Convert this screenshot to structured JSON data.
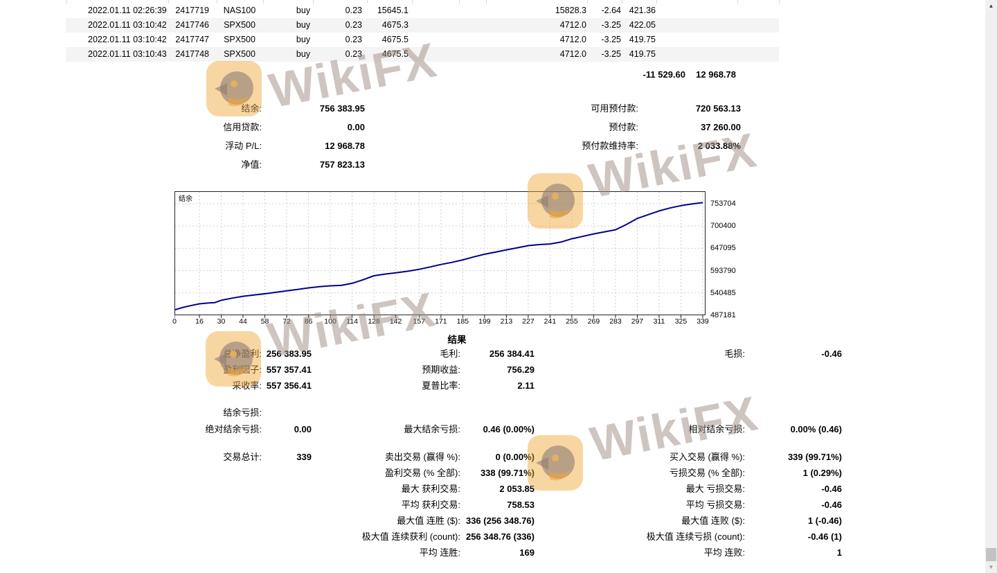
{
  "positions_table": {
    "rows": [
      {
        "time": "2022.01.11 02:26:39",
        "ticket": "2417719",
        "symbol": "NAS100",
        "type": "buy",
        "volume": "0.23",
        "price": "15645.1",
        "current_price": "15828.3",
        "swap": "-2.64",
        "profit": "421.36"
      },
      {
        "time": "2022.01.11 03:10:42",
        "ticket": "2417746",
        "symbol": "SPX500",
        "type": "buy",
        "volume": "0.23",
        "price": "4675.3",
        "current_price": "4712.0",
        "swap": "-3.25",
        "profit": "422.05"
      },
      {
        "time": "2022.01.11 03:10:42",
        "ticket": "2417747",
        "symbol": "SPX500",
        "type": "buy",
        "volume": "0.23",
        "price": "4675.5",
        "current_price": "4712.0",
        "swap": "-3.25",
        "profit": "419.75"
      },
      {
        "time": "2022.01.11 03:10:43",
        "ticket": "2417748",
        "symbol": "SPX500",
        "type": "buy",
        "volume": "0.23",
        "price": "4675.5",
        "current_price": "4712.0",
        "swap": "-3.25",
        "profit": "419.75"
      }
    ],
    "totals": {
      "swap_total": "-11 529.60",
      "profit_total": "12 968.78"
    }
  },
  "account_summary": {
    "left": [
      {
        "label": "结余:",
        "value": "756 383.95"
      },
      {
        "label": "信用贷款:",
        "value": "0.00"
      },
      {
        "label": "浮动 P/L:",
        "value": "12 968.78"
      },
      {
        "label": "净值:",
        "value": "757 823.13"
      }
    ],
    "right": [
      {
        "label": "可用预付款:",
        "value": "720 563.13"
      },
      {
        "label": "预付款:",
        "value": "37 260.00"
      },
      {
        "label": "预付款维持率:",
        "value": "2 033.88%"
      }
    ]
  },
  "chart_data": {
    "type": "line",
    "title": "",
    "legend": [
      "结余"
    ],
    "legend_position": "top-left-inside",
    "grid": true,
    "line_color": "#00008b",
    "xlabel": "",
    "ylabel": "",
    "x_ticks": [
      0,
      16,
      30,
      44,
      58,
      72,
      86,
      100,
      114,
      128,
      142,
      157,
      171,
      185,
      199,
      213,
      227,
      241,
      255,
      269,
      283,
      297,
      311,
      325,
      339
    ],
    "y_ticks": [
      753704,
      700400,
      647095,
      593790,
      540485,
      487181
    ],
    "xlim": [
      0,
      340.5
    ],
    "ylim": [
      487181,
      783500
    ],
    "series": [
      {
        "name": "结余",
        "points": [
          [
            0,
            500000
          ],
          [
            5,
            505500
          ],
          [
            10,
            509800
          ],
          [
            16,
            514500
          ],
          [
            22,
            516500
          ],
          [
            26,
            517500
          ],
          [
            30,
            523000
          ],
          [
            37,
            528000
          ],
          [
            44,
            532500
          ],
          [
            51,
            535500
          ],
          [
            58,
            538500
          ],
          [
            65,
            542000
          ],
          [
            72,
            545500
          ],
          [
            79,
            549000
          ],
          [
            86,
            552500
          ],
          [
            93,
            555500
          ],
          [
            100,
            557500
          ],
          [
            107,
            558500
          ],
          [
            114,
            563500
          ],
          [
            121,
            572000
          ],
          [
            128,
            581500
          ],
          [
            135,
            585500
          ],
          [
            142,
            588500
          ],
          [
            150,
            592500
          ],
          [
            157,
            597000
          ],
          [
            164,
            602500
          ],
          [
            171,
            608500
          ],
          [
            178,
            613500
          ],
          [
            185,
            619500
          ],
          [
            192,
            626500
          ],
          [
            199,
            633000
          ],
          [
            206,
            638000
          ],
          [
            213,
            643500
          ],
          [
            220,
            648500
          ],
          [
            227,
            653500
          ],
          [
            234,
            656000
          ],
          [
            241,
            657500
          ],
          [
            248,
            662000
          ],
          [
            255,
            670000
          ],
          [
            262,
            675500
          ],
          [
            269,
            681500
          ],
          [
            276,
            686500
          ],
          [
            283,
            691500
          ],
          [
            290,
            704000
          ],
          [
            297,
            718500
          ],
          [
            304,
            727500
          ],
          [
            311,
            736500
          ],
          [
            318,
            743500
          ],
          [
            325,
            749000
          ],
          [
            332,
            753000
          ],
          [
            339,
            756384
          ]
        ]
      }
    ]
  },
  "results": {
    "title": "结果",
    "rows": [
      {
        "left": {
          "label": "总净盈利:",
          "value": "256 383.95"
        },
        "mid": {
          "label": "毛利:",
          "value": "256 384.41"
        },
        "right": {
          "label": "毛损:",
          "value": "-0.46"
        }
      },
      {
        "left": {
          "label": "盈利因子:",
          "value": "557 357.41"
        },
        "mid": {
          "label": "预期收益:",
          "value": "756.29"
        }
      },
      {
        "left": {
          "label": "采收率:",
          "value": "557 356.41"
        },
        "mid": {
          "label": "夏普比率:",
          "value": "2.11"
        }
      },
      {
        "left": {
          "label": "结余亏损:",
          "value": ""
        }
      },
      {
        "left": {
          "label": "绝对结余亏损:",
          "value": "0.00"
        },
        "mid": {
          "label": "最大结余亏损:",
          "value": "0.46 (0.00%)"
        },
        "right": {
          "label": "相对结余亏损:",
          "value": "0.00% (0.46)"
        }
      },
      {
        "left": {
          "label": "交易总计:",
          "value": "339"
        },
        "mid": {
          "label": "卖出交易 (赢得 %):",
          "value": "0 (0.00%)"
        },
        "right": {
          "label": "买入交易 (赢得 %):",
          "value": "339 (99.71%)"
        }
      },
      {
        "mid": {
          "label": "盈利交易 (% 全部):",
          "value": "338 (99.71%)"
        },
        "right": {
          "label": "亏损交易 (% 全部):",
          "value": "1 (0.29%)"
        }
      },
      {
        "mid": {
          "label": "最大 获利交易:",
          "value": "2 053.85"
        },
        "right": {
          "label": "最大 亏损交易:",
          "value": "-0.46"
        }
      },
      {
        "mid": {
          "label": "平均 获利交易:",
          "value": "758.53"
        },
        "right": {
          "label": "平均 亏损交易:",
          "value": "-0.46"
        }
      },
      {
        "mid": {
          "label": "最大值 连胜 ($):",
          "value": "336 (256 348.76)"
        },
        "right": {
          "label": "最大值 连败 ($):",
          "value": "1 (-0.46)"
        }
      },
      {
        "mid": {
          "label": "极大值 连续获利 (count):",
          "value": "256 348.76 (336)"
        },
        "right": {
          "label": "极大值 连续亏损 (count):",
          "value": "-0.46 (1)"
        }
      },
      {
        "mid": {
          "label": "平均 连胜:",
          "value": "169"
        },
        "right": {
          "label": "平均 连败:",
          "value": "1"
        }
      }
    ]
  },
  "watermark": {
    "text": "WikiFX",
    "badge_color": "#f0a530",
    "emblem_color": "#8d7b74",
    "text_color": "#9e8a82"
  },
  "icons": {
    "scroll_up": "▲",
    "scroll_down": "▼"
  },
  "colors": {
    "row_stripe": "#f4f4f4",
    "chart_line": "#00008b",
    "chart_grid": "#cfcfcf",
    "chart_border": "#222222",
    "scrollbar_track": "#f0f0f0",
    "scrollbar_thumb": "#c3c3c3"
  }
}
